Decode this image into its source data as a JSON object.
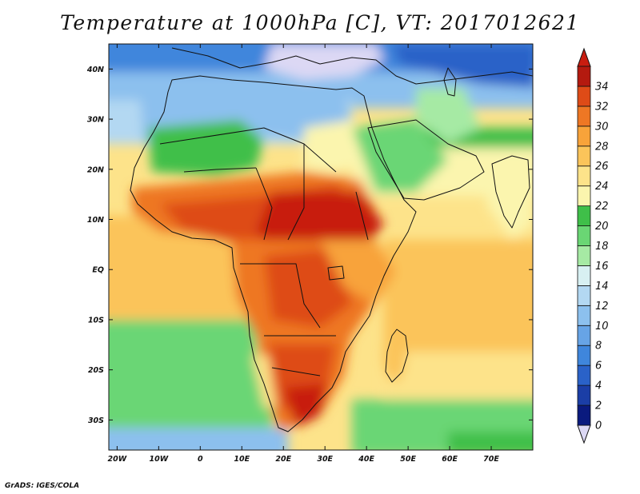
{
  "title": "Temperature at 1000hPa [C], VT: 2017012621",
  "credit": "GrADS: IGES/COLA",
  "map": {
    "lon_range": [
      -22,
      80
    ],
    "lat_range": [
      -36,
      45
    ],
    "lat_ticks": [
      {
        "value": 40,
        "label": "40N"
      },
      {
        "value": 30,
        "label": "30N"
      },
      {
        "value": 20,
        "label": "20N"
      },
      {
        "value": 10,
        "label": "10N"
      },
      {
        "value": 0,
        "label": "EQ"
      },
      {
        "value": -10,
        "label": "10S"
      },
      {
        "value": -20,
        "label": "20S"
      },
      {
        "value": -30,
        "label": "30S"
      }
    ],
    "lon_ticks": [
      {
        "value": -20,
        "label": "20W"
      },
      {
        "value": -10,
        "label": "10W"
      },
      {
        "value": 0,
        "label": "0"
      },
      {
        "value": 10,
        "label": "10E"
      },
      {
        "value": 20,
        "label": "20E"
      },
      {
        "value": 30,
        "label": "30E"
      },
      {
        "value": 40,
        "label": "40E"
      },
      {
        "value": 50,
        "label": "50E"
      },
      {
        "value": 60,
        "label": "60E"
      },
      {
        "value": 70,
        "label": "70E"
      }
    ]
  },
  "colorbar": {
    "levels": [
      0,
      2,
      4,
      6,
      8,
      10,
      12,
      14,
      16,
      18,
      20,
      22,
      24,
      26,
      28,
      30,
      32,
      34
    ],
    "colors": [
      "#0a1a7e",
      "#1b3ea6",
      "#2a62c8",
      "#3f86dc",
      "#67a4e6",
      "#8cc0ee",
      "#b3d8f2",
      "#d8f0f2",
      "#a6eaa4",
      "#6ad674",
      "#3fbf49",
      "#fbf5ae",
      "#fde38a",
      "#fbc45a",
      "#f8a33a",
      "#ee7724",
      "#de4b17",
      "#b41a0f"
    ],
    "under_color": "#dcd8f4",
    "over_color": "#c81d10"
  }
}
